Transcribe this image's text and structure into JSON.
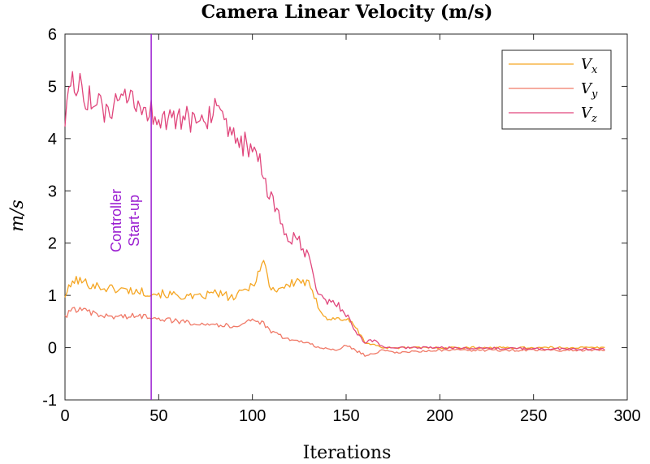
{
  "chart_data": {
    "type": "line",
    "title": "Camera Linear Velocity (m/s)",
    "xlabel": "Iterations",
    "ylabel": "m/s",
    "xlim": [
      0,
      300
    ],
    "ylim": [
      -1,
      6
    ],
    "xticks": [
      0,
      50,
      100,
      150,
      200,
      250,
      300
    ],
    "yticks": [
      -1,
      0,
      1,
      2,
      3,
      4,
      5,
      6
    ],
    "legend_position": "top-right",
    "annotation": {
      "x": 46,
      "line1": "Controller",
      "line2": "Start-up",
      "color": "#9b1fd1"
    },
    "series": [
      {
        "name": "V_x",
        "label_main": "V",
        "label_sub": "x",
        "color": "#f5a623",
        "anchors": [
          [
            0,
            1.0
          ],
          [
            5,
            1.3
          ],
          [
            20,
            1.15
          ],
          [
            46,
            1.05
          ],
          [
            60,
            1.0
          ],
          [
            70,
            0.95
          ],
          [
            80,
            1.05
          ],
          [
            90,
            0.95
          ],
          [
            100,
            1.2
          ],
          [
            106,
            1.65
          ],
          [
            110,
            1.1
          ],
          [
            120,
            1.2
          ],
          [
            125,
            1.3
          ],
          [
            130,
            1.2
          ],
          [
            135,
            0.8
          ],
          [
            140,
            0.55
          ],
          [
            150,
            0.55
          ],
          [
            155,
            0.4
          ],
          [
            160,
            0.1
          ],
          [
            165,
            0.05
          ],
          [
            170,
            0.0
          ],
          [
            175,
            0.0
          ],
          [
            200,
            0.0
          ],
          [
            250,
            0.0
          ],
          [
            288,
            0.0
          ]
        ]
      },
      {
        "name": "V_y",
        "label_main": "V",
        "label_sub": "y",
        "color": "#f07a68",
        "anchors": [
          [
            0,
            0.6
          ],
          [
            5,
            0.75
          ],
          [
            20,
            0.6
          ],
          [
            46,
            0.6
          ],
          [
            60,
            0.5
          ],
          [
            80,
            0.45
          ],
          [
            90,
            0.4
          ],
          [
            100,
            0.55
          ],
          [
            106,
            0.45
          ],
          [
            110,
            0.3
          ],
          [
            120,
            0.15
          ],
          [
            130,
            0.1
          ],
          [
            135,
            0.0
          ],
          [
            145,
            -0.05
          ],
          [
            150,
            0.05
          ],
          [
            160,
            -0.15
          ],
          [
            170,
            -0.05
          ],
          [
            175,
            -0.1
          ],
          [
            200,
            -0.05
          ],
          [
            250,
            -0.05
          ],
          [
            288,
            -0.05
          ]
        ]
      },
      {
        "name": "V_z",
        "label_main": "V",
        "label_sub": "z",
        "color": "#e0467c",
        "anchors": [
          [
            0,
            4.5
          ],
          [
            5,
            5.1
          ],
          [
            20,
            4.5
          ],
          [
            35,
            4.7
          ],
          [
            46,
            4.5
          ],
          [
            60,
            4.3
          ],
          [
            70,
            4.4
          ],
          [
            80,
            4.5
          ],
          [
            88,
            4.0
          ],
          [
            95,
            3.9
          ],
          [
            102,
            3.7
          ],
          [
            106,
            3.3
          ],
          [
            110,
            2.8
          ],
          [
            115,
            2.4
          ],
          [
            120,
            2.1
          ],
          [
            125,
            2.0
          ],
          [
            130,
            1.7
          ],
          [
            135,
            1.0
          ],
          [
            140,
            0.9
          ],
          [
            146,
            0.8
          ],
          [
            152,
            0.55
          ],
          [
            155,
            0.3
          ],
          [
            160,
            0.1
          ],
          [
            165,
            0.15
          ],
          [
            170,
            0.0
          ],
          [
            175,
            0.0
          ],
          [
            200,
            0.0
          ],
          [
            250,
            -0.02
          ],
          [
            288,
            -0.03
          ]
        ]
      }
    ]
  }
}
